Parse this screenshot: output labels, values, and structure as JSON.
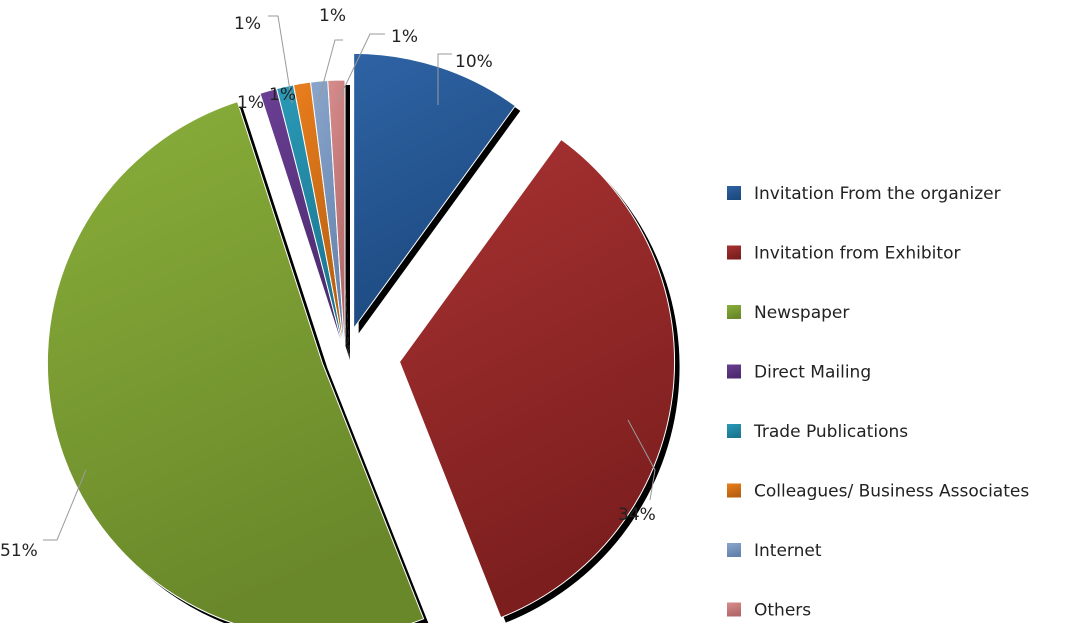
{
  "chart_data": {
    "type": "pie",
    "exploded": true,
    "three_d_shadow": true,
    "legend_position": "right",
    "series": [
      {
        "values": [
          10,
          34,
          51,
          1,
          1,
          1,
          1,
          1
        ],
        "labels": [
          "10%",
          "34%",
          "51%",
          "1%",
          "1%",
          "1%",
          "1%",
          "1%"
        ]
      }
    ],
    "categories": [
      "Invitation From the organizer",
      "Invitation from Exhibitor",
      "Newspaper",
      "Direct Mailing",
      "Trade Publications",
      "Colleagues/ Business Associates",
      "Internet",
      "Others"
    ],
    "colors": [
      "#2E63A4",
      "#A83232",
      "#8AAF3A",
      "#6A3F94",
      "#2A9AB7",
      "#E97E1E",
      "#8AA6CC",
      "#D88D8D"
    ],
    "dark_colors": [
      "#1D4A80",
      "#7C1E1E",
      "#69882A",
      "#4C2A6E",
      "#1B7690",
      "#B8600F",
      "#6482AC",
      "#B26868"
    ]
  }
}
